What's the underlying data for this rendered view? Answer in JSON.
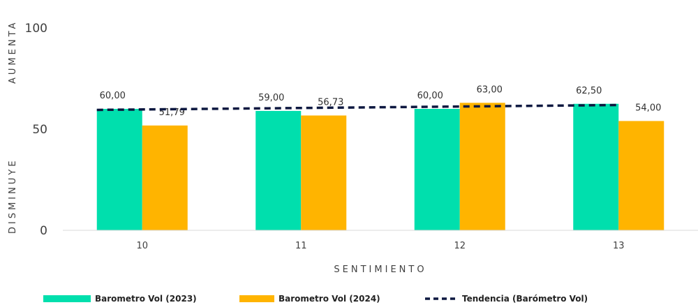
{
  "chart_data": {
    "type": "bar",
    "categories": [
      "10",
      "11",
      "12",
      "13"
    ],
    "series": [
      {
        "name": "Barometro Vol (2023)",
        "type": "bar",
        "color": "#00dfad",
        "values": [
          60.0,
          59.0,
          60.0,
          62.5
        ],
        "labels": [
          "60,00",
          "59,00",
          "60,00",
          "62,50"
        ]
      },
      {
        "name": "Barometro Vol (2024)",
        "type": "bar",
        "color": "#ffb400",
        "values": [
          51.79,
          56.73,
          63.0,
          54.0
        ],
        "labels": [
          "51,79",
          "56,73",
          "63,00",
          "54,00"
        ]
      },
      {
        "name": "Tendencia (Barómetro Vol)",
        "type": "line",
        "style": "dashed",
        "color": "#0d1840",
        "values": [
          59.5,
          60.3,
          61.1,
          61.9
        ]
      }
    ],
    "xlabel": "SENTIMIENTO",
    "ylabel_top": "AUMENTA",
    "ylabel_bottom": "DISMINUYE",
    "ylim": [
      0,
      100
    ],
    "yticks": [
      0,
      50,
      100
    ],
    "grid": false,
    "legend_position": "bottom"
  }
}
